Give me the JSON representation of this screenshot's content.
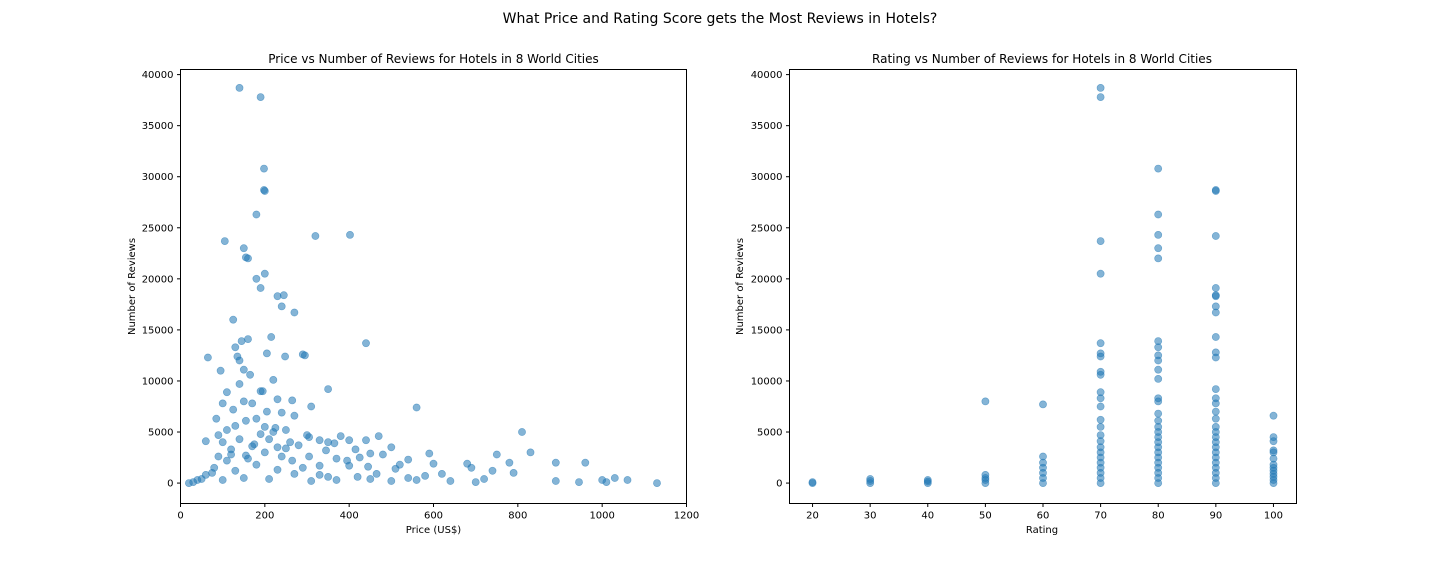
{
  "figure": {
    "suptitle": "What Price and Rating Score gets the Most Reviews in Hotels?"
  },
  "colors": {
    "points": "#1f77b4"
  },
  "chart_data": [
    {
      "type": "scatter",
      "title": "Price vs Number of Reviews for Hotels in 8 World Cities",
      "xlabel": "Price (US$)",
      "ylabel": "Number of Reviews",
      "xlim": [
        0,
        1200
      ],
      "ylim": [
        -2000,
        40500
      ],
      "xticks": [
        0,
        200,
        400,
        600,
        800,
        1000,
        1200
      ],
      "yticks": [
        0,
        5000,
        10000,
        15000,
        20000,
        25000,
        30000,
        35000,
        40000
      ],
      "grid": false,
      "series": [
        {
          "points": [
            [
              140,
              38700
            ],
            [
              190,
              37800
            ],
            [
              198,
              30800
            ],
            [
              198,
              28700
            ],
            [
              200,
              28600
            ],
            [
              180,
              26300
            ],
            [
              320,
              24200
            ],
            [
              402,
              24300
            ],
            [
              105,
              23700
            ],
            [
              150,
              23000
            ],
            [
              155,
              22100
            ],
            [
              160,
              22000
            ],
            [
              200,
              20500
            ],
            [
              180,
              20000
            ],
            [
              190,
              19100
            ],
            [
              230,
              18300
            ],
            [
              245,
              18400
            ],
            [
              240,
              17300
            ],
            [
              270,
              16700
            ],
            [
              125,
              16000
            ],
            [
              215,
              14300
            ],
            [
              160,
              14100
            ],
            [
              145,
              13900
            ],
            [
              440,
              13700
            ],
            [
              130,
              13300
            ],
            [
              205,
              12700
            ],
            [
              290,
              12600
            ],
            [
              295,
              12500
            ],
            [
              248,
              12400
            ],
            [
              65,
              12300
            ],
            [
              135,
              12400
            ],
            [
              140,
              12000
            ],
            [
              150,
              11100
            ],
            [
              165,
              10600
            ],
            [
              95,
              11000
            ],
            [
              220,
              10100
            ],
            [
              140,
              9700
            ],
            [
              350,
              9200
            ],
            [
              190,
              9000
            ],
            [
              195,
              9000
            ],
            [
              110,
              8900
            ],
            [
              230,
              8200
            ],
            [
              265,
              8100
            ],
            [
              150,
              8000
            ],
            [
              170,
              7800
            ],
            [
              100,
              7800
            ],
            [
              310,
              7500
            ],
            [
              560,
              7400
            ],
            [
              125,
              7200
            ],
            [
              205,
              7000
            ],
            [
              240,
              6900
            ],
            [
              270,
              6600
            ],
            [
              180,
              6300
            ],
            [
              85,
              6300
            ],
            [
              155,
              6100
            ],
            [
              130,
              5600
            ],
            [
              200,
              5500
            ],
            [
              225,
              5400
            ],
            [
              250,
              5200
            ],
            [
              810,
              5000
            ],
            [
              90,
              4700
            ],
            [
              380,
              4600
            ],
            [
              470,
              4600
            ],
            [
              305,
              4500
            ],
            [
              210,
              4300
            ],
            [
              440,
              4200
            ],
            [
              400,
              4200
            ],
            [
              330,
              4200
            ],
            [
              60,
              4100
            ],
            [
              100,
              4000
            ],
            [
              365,
              3900
            ],
            [
              175,
              3800
            ],
            [
              280,
              3700
            ],
            [
              500,
              3500
            ],
            [
              230,
              3500
            ],
            [
              250,
              3400
            ],
            [
              415,
              3300
            ],
            [
              120,
              3300
            ],
            [
              345,
              3200
            ],
            [
              830,
              3000
            ],
            [
              590,
              2900
            ],
            [
              450,
              2900
            ],
            [
              480,
              2800
            ],
            [
              750,
              2800
            ],
            [
              155,
              2700
            ],
            [
              305,
              2600
            ],
            [
              425,
              2500
            ],
            [
              370,
              2400
            ],
            [
              540,
              2300
            ],
            [
              265,
              2200
            ],
            [
              395,
              2200
            ],
            [
              890,
              2000
            ],
            [
              780,
              2000
            ],
            [
              960,
              2000
            ],
            [
              680,
              1900
            ],
            [
              600,
              1900
            ],
            [
              520,
              1800
            ],
            [
              400,
              1700
            ],
            [
              330,
              1700
            ],
            [
              445,
              1600
            ],
            [
              690,
              1500
            ],
            [
              510,
              1400
            ],
            [
              740,
              1200
            ],
            [
              790,
              1000
            ],
            [
              620,
              900
            ],
            [
              465,
              900
            ],
            [
              580,
              700
            ],
            [
              420,
              600
            ],
            [
              540,
              500
            ],
            [
              1030,
              500
            ],
            [
              720,
              400
            ],
            [
              1060,
              300
            ],
            [
              890,
              200
            ],
            [
              945,
              100
            ],
            [
              1000,
              300
            ],
            [
              1010,
              100
            ],
            [
              1130,
              0
            ],
            [
              60,
              800
            ],
            [
              80,
              1500
            ],
            [
              110,
              2200
            ],
            [
              90,
              2600
            ],
            [
              75,
              1000
            ],
            [
              40,
              300
            ],
            [
              30,
              100
            ],
            [
              20,
              0
            ],
            [
              50,
              400
            ],
            [
              350,
              600
            ],
            [
              310,
              200
            ],
            [
              270,
              900
            ],
            [
              230,
              1300
            ],
            [
              210,
              400
            ],
            [
              180,
              1800
            ],
            [
              150,
              500
            ],
            [
              130,
              1200
            ],
            [
              100,
              300
            ],
            [
              160,
              2400
            ],
            [
              240,
              2600
            ],
            [
              290,
              1500
            ],
            [
              330,
              800
            ],
            [
              370,
              300
            ],
            [
              450,
              400
            ],
            [
              500,
              200
            ],
            [
              560,
              300
            ],
            [
              640,
              200
            ],
            [
              700,
              100
            ],
            [
              200,
              3000
            ],
            [
              120,
              2800
            ],
            [
              170,
              3600
            ],
            [
              260,
              4000
            ],
            [
              140,
              4300
            ],
            [
              190,
              4800
            ],
            [
              220,
              5000
            ],
            [
              110,
              5200
            ],
            [
              300,
              4700
            ],
            [
              350,
              4000
            ]
          ]
        }
      ]
    },
    {
      "type": "scatter",
      "title": "Rating vs Number of Reviews for Hotels in 8 World Cities",
      "xlabel": "Rating",
      "ylabel": "Number of Reviews",
      "xlim": [
        16,
        104
      ],
      "ylim": [
        -2000,
        40500
      ],
      "xticks": [
        20,
        30,
        40,
        50,
        60,
        70,
        80,
        90,
        100
      ],
      "yticks": [
        0,
        5000,
        10000,
        15000,
        20000,
        25000,
        30000,
        35000,
        40000
      ],
      "grid": false,
      "series": [
        {
          "points": [
            [
              20,
              0
            ],
            [
              20,
              100
            ],
            [
              30,
              0
            ],
            [
              30,
              200
            ],
            [
              30,
              400
            ],
            [
              40,
              0
            ],
            [
              40,
              150
            ],
            [
              40,
              300
            ],
            [
              50,
              0
            ],
            [
              50,
              300
            ],
            [
              50,
              500
            ],
            [
              50,
              800
            ],
            [
              50,
              8000
            ],
            [
              60,
              0
            ],
            [
              60,
              500
            ],
            [
              60,
              1000
            ],
            [
              60,
              1500
            ],
            [
              60,
              2000
            ],
            [
              60,
              2600
            ],
            [
              60,
              7700
            ],
            [
              70,
              0
            ],
            [
              70,
              500
            ],
            [
              70,
              1000
            ],
            [
              70,
              1500
            ],
            [
              70,
              2000
            ],
            [
              70,
              2500
            ],
            [
              70,
              3000
            ],
            [
              70,
              3500
            ],
            [
              70,
              4100
            ],
            [
              70,
              4700
            ],
            [
              70,
              5500
            ],
            [
              70,
              6200
            ],
            [
              70,
              7500
            ],
            [
              70,
              8300
            ],
            [
              70,
              8900
            ],
            [
              70,
              10600
            ],
            [
              70,
              10900
            ],
            [
              70,
              12400
            ],
            [
              70,
              12700
            ],
            [
              70,
              13700
            ],
            [
              70,
              20500
            ],
            [
              70,
              23700
            ],
            [
              70,
              37800
            ],
            [
              70,
              38700
            ],
            [
              80,
              0
            ],
            [
              80,
              500
            ],
            [
              80,
              1000
            ],
            [
              80,
              1500
            ],
            [
              80,
              2000
            ],
            [
              80,
              2500
            ],
            [
              80,
              3000
            ],
            [
              80,
              3500
            ],
            [
              80,
              4000
            ],
            [
              80,
              4500
            ],
            [
              80,
              5000
            ],
            [
              80,
              5500
            ],
            [
              80,
              6100
            ],
            [
              80,
              6800
            ],
            [
              80,
              8000
            ],
            [
              80,
              8300
            ],
            [
              80,
              10200
            ],
            [
              80,
              11100
            ],
            [
              80,
              12000
            ],
            [
              80,
              12500
            ],
            [
              80,
              13300
            ],
            [
              80,
              13900
            ],
            [
              80,
              22000
            ],
            [
              80,
              23000
            ],
            [
              80,
              24300
            ],
            [
              80,
              26300
            ],
            [
              80,
              30800
            ],
            [
              90,
              0
            ],
            [
              90,
              500
            ],
            [
              90,
              1000
            ],
            [
              90,
              1500
            ],
            [
              90,
              2000
            ],
            [
              90,
              2500
            ],
            [
              90,
              3000
            ],
            [
              90,
              3500
            ],
            [
              90,
              4000
            ],
            [
              90,
              4500
            ],
            [
              90,
              5000
            ],
            [
              90,
              5500
            ],
            [
              90,
              6300
            ],
            [
              90,
              7000
            ],
            [
              90,
              7800
            ],
            [
              90,
              8300
            ],
            [
              90,
              9200
            ],
            [
              90,
              12300
            ],
            [
              90,
              12800
            ],
            [
              90,
              14300
            ],
            [
              90,
              16700
            ],
            [
              90,
              17300
            ],
            [
              90,
              18300
            ],
            [
              90,
              18400
            ],
            [
              90,
              19100
            ],
            [
              90,
              24200
            ],
            [
              90,
              28600
            ],
            [
              90,
              28700
            ],
            [
              100,
              0
            ],
            [
              100,
              300
            ],
            [
              100,
              600
            ],
            [
              100,
              900
            ],
            [
              100,
              1200
            ],
            [
              100,
              1500
            ],
            [
              100,
              1800
            ],
            [
              100,
              2400
            ],
            [
              100,
              3000
            ],
            [
              100,
              3200
            ],
            [
              100,
              4100
            ],
            [
              100,
              4500
            ],
            [
              100,
              6600
            ]
          ]
        }
      ]
    }
  ]
}
